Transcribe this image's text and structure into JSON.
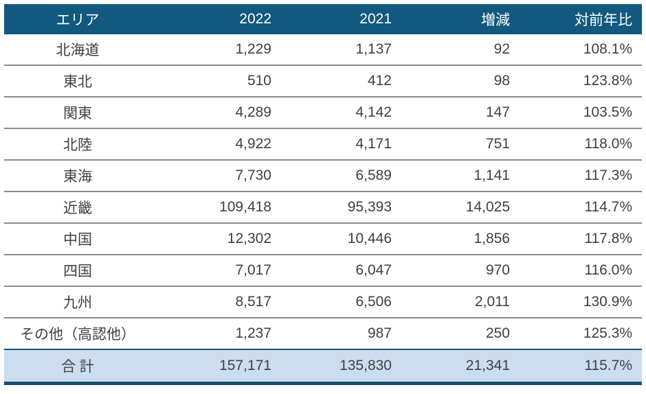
{
  "chart_data": {
    "type": "table",
    "title": "",
    "columns": [
      "エリア",
      "2022",
      "2021",
      "増減",
      "対前年比"
    ],
    "rows": [
      [
        "北海道",
        1229,
        1137,
        92,
        "108.1%"
      ],
      [
        "東北",
        510,
        412,
        98,
        "123.8%"
      ],
      [
        "関東",
        4289,
        4142,
        147,
        "103.5%"
      ],
      [
        "北陸",
        4922,
        4171,
        751,
        "118.0%"
      ],
      [
        "東海",
        7730,
        6589,
        1141,
        "117.3%"
      ],
      [
        "近畿",
        109418,
        95393,
        14025,
        "114.7%"
      ],
      [
        "中国",
        12302,
        10446,
        1856,
        "117.8%"
      ],
      [
        "四国",
        7017,
        6047,
        970,
        "116.0%"
      ],
      [
        "九州",
        8517,
        6506,
        2011,
        "130.9%"
      ],
      [
        "その他（高認他）",
        1237,
        987,
        250,
        "125.3%"
      ]
    ],
    "total_row": [
      "合 計",
      157171,
      135830,
      21341,
      "115.7%"
    ]
  },
  "table": {
    "columns": {
      "area": "エリア",
      "y2022": "2022",
      "y2021": "2021",
      "diff": "増減",
      "yoy": "対前年比"
    },
    "rows": [
      {
        "area": "北海道",
        "y2022": "1,229",
        "y2021": "1,137",
        "diff": "92",
        "yoy": "108.1%"
      },
      {
        "area": "東北",
        "y2022": "510",
        "y2021": "412",
        "diff": "98",
        "yoy": "123.8%"
      },
      {
        "area": "関東",
        "y2022": "4,289",
        "y2021": "4,142",
        "diff": "147",
        "yoy": "103.5%"
      },
      {
        "area": "北陸",
        "y2022": "4,922",
        "y2021": "4,171",
        "diff": "751",
        "yoy": "118.0%"
      },
      {
        "area": "東海",
        "y2022": "7,730",
        "y2021": "6,589",
        "diff": "1,141",
        "yoy": "117.3%"
      },
      {
        "area": "近畿",
        "y2022": "109,418",
        "y2021": "95,393",
        "diff": "14,025",
        "yoy": "114.7%"
      },
      {
        "area": "中国",
        "y2022": "12,302",
        "y2021": "10,446",
        "diff": "1,856",
        "yoy": "117.8%"
      },
      {
        "area": "四国",
        "y2022": "7,017",
        "y2021": "6,047",
        "diff": "970",
        "yoy": "116.0%"
      },
      {
        "area": "九州",
        "y2022": "8,517",
        "y2021": "6,506",
        "diff": "2,011",
        "yoy": "130.9%"
      },
      {
        "area": "その他（高認他）",
        "y2022": "1,237",
        "y2021": "987",
        "diff": "250",
        "yoy": "125.3%"
      }
    ],
    "total": {
      "area": "合 計",
      "y2022": "157,171",
      "y2021": "135,830",
      "diff": "21,341",
      "yoy": "115.7%"
    }
  },
  "colors": {
    "header_bg": "#11597E",
    "header_text": "#FFFFFF",
    "body_text": "#3F3F3F",
    "row_separator": "#8A8A8A",
    "total_bg": "#CDDDF0",
    "total_top_border": "#1B4E75",
    "bottom_border": "#15506B"
  }
}
